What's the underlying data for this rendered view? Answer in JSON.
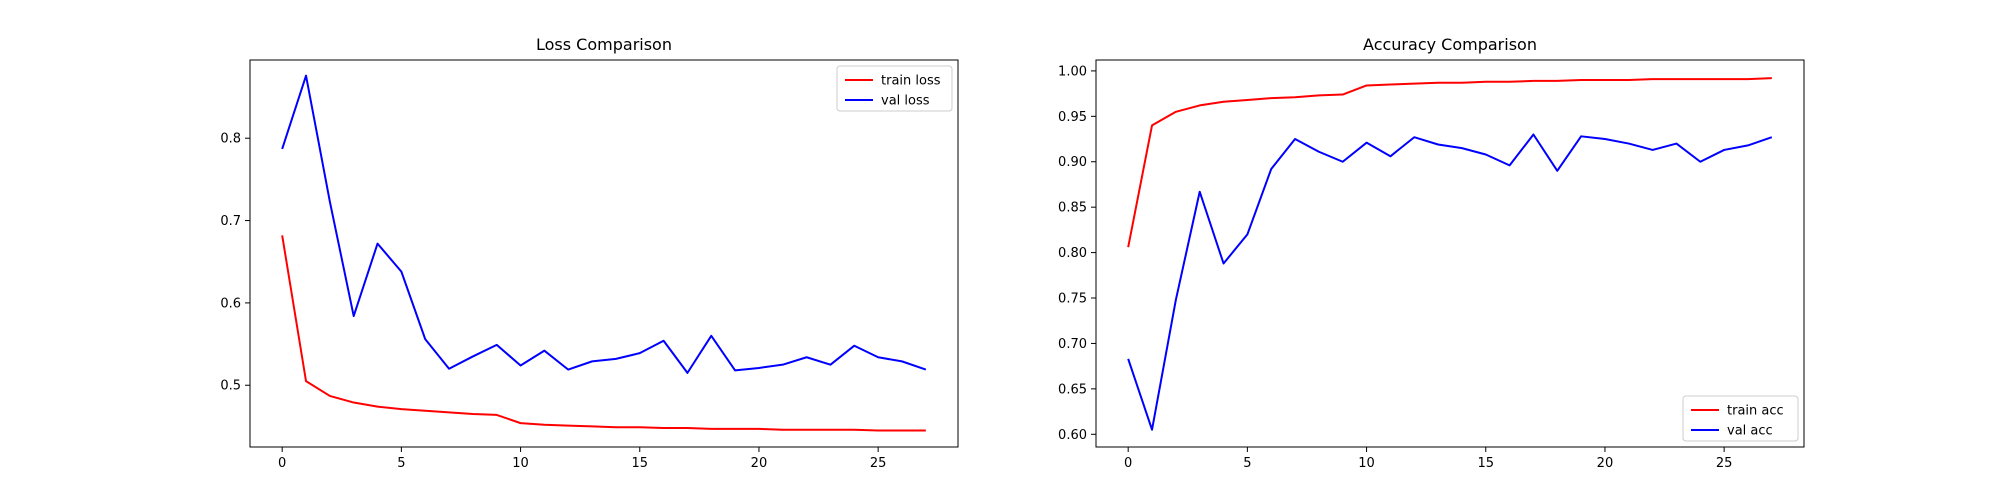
{
  "chart_data": [
    {
      "type": "line",
      "title": "Loss Comparison",
      "xlabel": "",
      "ylabel": "",
      "x": [
        0,
        1,
        2,
        3,
        4,
        5,
        6,
        7,
        8,
        9,
        10,
        11,
        12,
        13,
        14,
        15,
        16,
        17,
        18,
        19,
        20,
        21,
        22,
        23,
        24,
        25,
        26,
        27
      ],
      "xlim": [
        -1.35,
        28.35
      ],
      "ylim": [
        0.425,
        0.895
      ],
      "xticks": [
        0,
        5,
        10,
        15,
        20,
        25
      ],
      "yticks": [
        0.5,
        0.6,
        0.7,
        0.8
      ],
      "ytick_labels": [
        "0.5",
        "0.6",
        "0.7",
        "0.8"
      ],
      "grid": false,
      "legend_position": "top-right",
      "series": [
        {
          "name": "train loss",
          "color": "#ff0000",
          "values": [
            0.682,
            0.505,
            0.487,
            0.479,
            0.474,
            0.471,
            0.469,
            0.467,
            0.465,
            0.464,
            0.454,
            0.452,
            0.451,
            0.45,
            0.449,
            0.449,
            0.448,
            0.448,
            0.447,
            0.447,
            0.447,
            0.446,
            0.446,
            0.446,
            0.446,
            0.445,
            0.445,
            0.445
          ]
        },
        {
          "name": "val loss",
          "color": "#0000ff",
          "values": [
            0.787,
            0.876,
            0.723,
            0.584,
            0.672,
            0.638,
            0.556,
            0.52,
            0.535,
            0.549,
            0.524,
            0.542,
            0.519,
            0.529,
            0.532,
            0.539,
            0.554,
            0.515,
            0.56,
            0.518,
            0.521,
            0.525,
            0.534,
            0.525,
            0.548,
            0.534,
            0.529,
            0.519
          ]
        }
      ]
    },
    {
      "type": "line",
      "title": "Accuracy Comparison",
      "xlabel": "",
      "ylabel": "",
      "x": [
        0,
        1,
        2,
        3,
        4,
        5,
        6,
        7,
        8,
        9,
        10,
        11,
        12,
        13,
        14,
        15,
        16,
        17,
        18,
        19,
        20,
        21,
        22,
        23,
        24,
        25,
        26,
        27
      ],
      "xlim": [
        -1.35,
        28.35
      ],
      "ylim": [
        0.586,
        1.012
      ],
      "xticks": [
        0,
        5,
        10,
        15,
        20,
        25
      ],
      "yticks": [
        0.6,
        0.65,
        0.7,
        0.75,
        0.8,
        0.85,
        0.9,
        0.95,
        1.0
      ],
      "ytick_labels": [
        "0.60",
        "0.65",
        "0.70",
        "0.75",
        "0.80",
        "0.85",
        "0.90",
        "0.95",
        "1.00"
      ],
      "grid": false,
      "legend_position": "bottom-right",
      "series": [
        {
          "name": "train acc",
          "color": "#ff0000",
          "values": [
            0.806,
            0.94,
            0.955,
            0.962,
            0.966,
            0.968,
            0.97,
            0.971,
            0.973,
            0.974,
            0.984,
            0.985,
            0.986,
            0.987,
            0.987,
            0.988,
            0.988,
            0.989,
            0.989,
            0.99,
            0.99,
            0.99,
            0.991,
            0.991,
            0.991,
            0.991,
            0.991,
            0.992
          ]
        },
        {
          "name": "val acc",
          "color": "#0000ff",
          "values": [
            0.683,
            0.605,
            0.748,
            0.867,
            0.788,
            0.82,
            0.892,
            0.925,
            0.911,
            0.9,
            0.921,
            0.906,
            0.927,
            0.919,
            0.915,
            0.908,
            0.896,
            0.93,
            0.89,
            0.928,
            0.925,
            0.92,
            0.913,
            0.92,
            0.9,
            0.913,
            0.918,
            0.927
          ]
        }
      ]
    }
  ]
}
